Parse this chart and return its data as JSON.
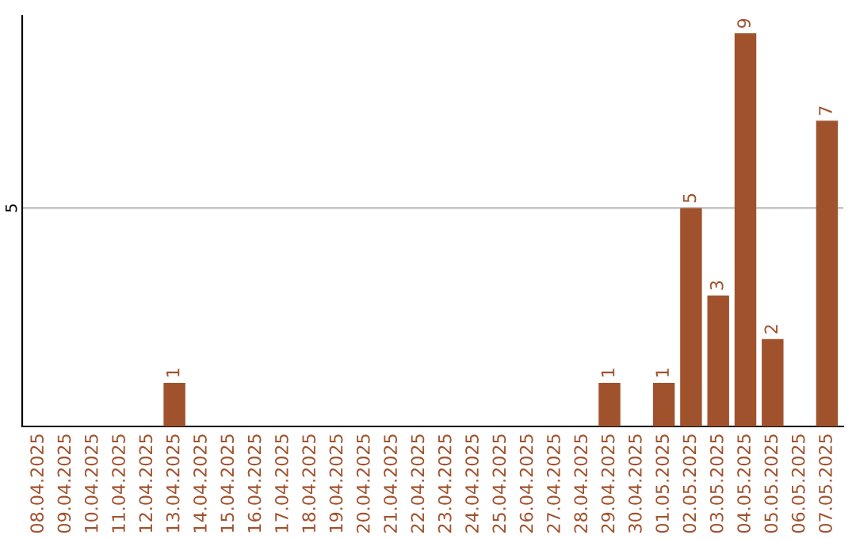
{
  "chart_data": {
    "type": "bar",
    "categories": [
      "08.04.2025",
      "09.04.2025",
      "10.04.2025",
      "11.04.2025",
      "12.04.2025",
      "13.04.2025",
      "14.04.2025",
      "15.04.2025",
      "16.04.2025",
      "17.04.2025",
      "18.04.2025",
      "19.04.2025",
      "20.04.2025",
      "21.04.2025",
      "22.04.2025",
      "23.04.2025",
      "24.04.2025",
      "25.04.2025",
      "26.04.2025",
      "27.04.2025",
      "28.04.2025",
      "29.04.2025",
      "30.04.2025",
      "01.05.2025",
      "02.05.2025",
      "03.05.2025",
      "04.05.2025",
      "05.05.2025",
      "06.05.2025",
      "07.05.2025"
    ],
    "values": [
      0,
      0,
      0,
      0,
      0,
      1,
      0,
      0,
      0,
      0,
      0,
      0,
      0,
      0,
      0,
      0,
      0,
      0,
      0,
      0,
      0,
      1,
      0,
      1,
      5,
      3,
      9,
      2,
      0,
      7
    ],
    "value_labels": [
      null,
      null,
      null,
      null,
      null,
      "1",
      null,
      null,
      null,
      null,
      null,
      null,
      null,
      null,
      null,
      null,
      null,
      null,
      null,
      null,
      null,
      "1",
      null,
      "1",
      "5",
      "3",
      "9",
      "2",
      null,
      "7"
    ],
    "color": "#a0522d",
    "ylim": [
      0,
      9.4
    ],
    "yticks": [
      5
    ],
    "grid": "y"
  }
}
